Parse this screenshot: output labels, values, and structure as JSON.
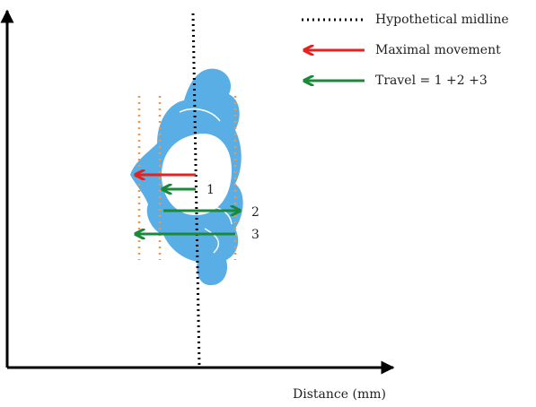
{
  "legend": [
    {
      "label": "Hypothetical midline"
    },
    {
      "label": "Maximal movement"
    },
    {
      "label": "Travel = 1 +2 +3"
    }
  ],
  "arrows": [
    {
      "label": "1"
    },
    {
      "label": "2"
    },
    {
      "label": "3"
    }
  ],
  "x_axis_label": "Distance (mm)"
}
